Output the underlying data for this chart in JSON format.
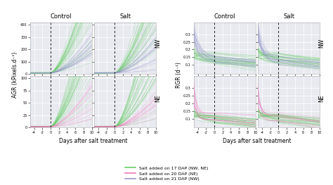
{
  "title_left": "AGR (kPixels.d⁻¹)",
  "title_right": "RGR (d⁻¹)",
  "xlabel": "Days after salt treatment",
  "legend": [
    {
      "label": "Salt added on 17 DAP (NW, NE)",
      "color": "#66CC66"
    },
    {
      "label": "Salt added on 20 DAP (NE)",
      "color": "#EE77BB"
    },
    {
      "label": "Salt added on 21 DAP (NW)",
      "color": "#9999CC"
    }
  ],
  "bg_color": "#E8EAF0",
  "grid_color": "white",
  "seed": 42
}
